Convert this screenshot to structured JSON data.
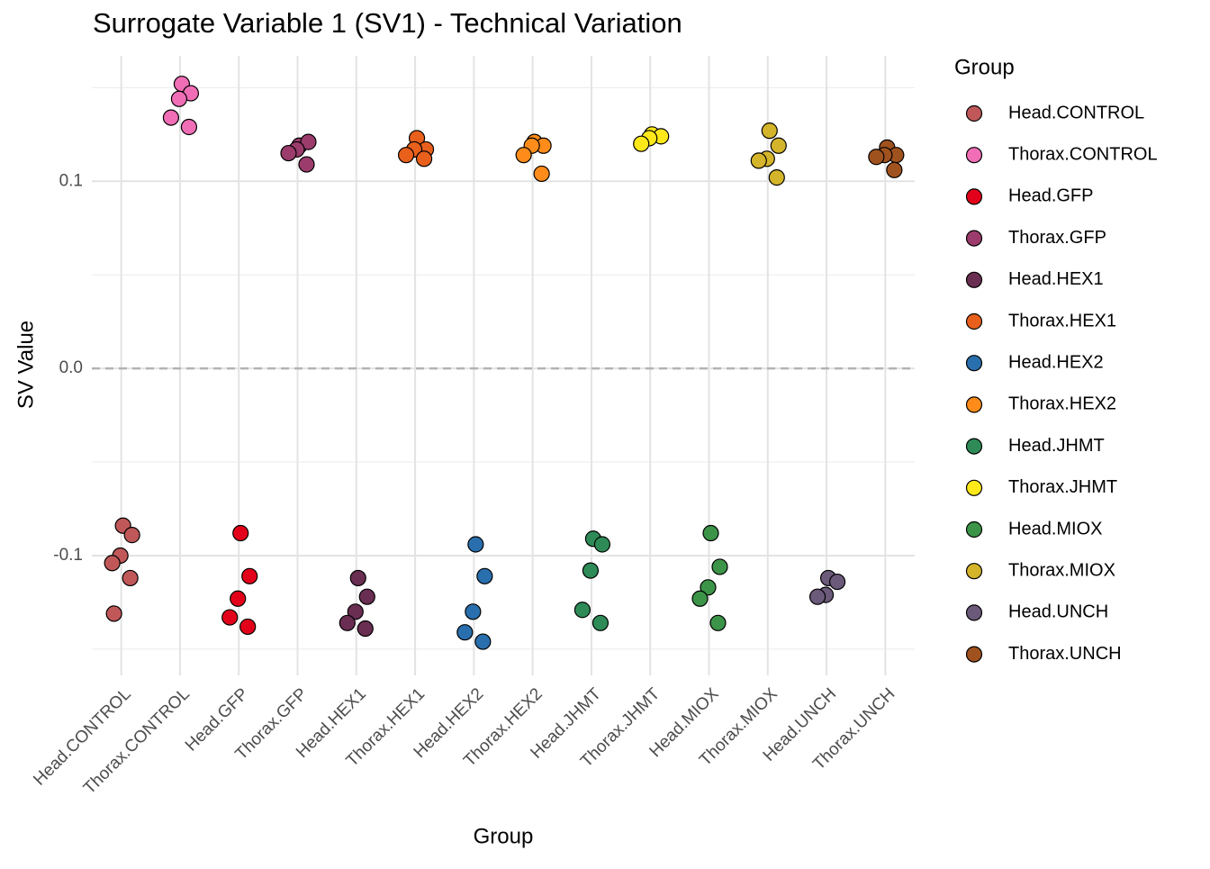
{
  "chart_data": {
    "type": "strip",
    "title": "Surrogate Variable 1 (SV1) - Technical Variation",
    "x_label": "Group",
    "y_label": "SV Value",
    "legend_title": "Group",
    "categories": [
      "Head.CONTROL",
      "Thorax.CONTROL",
      "Head.GFP",
      "Thorax.GFP",
      "Head.HEX1",
      "Thorax.HEX1",
      "Head.HEX2",
      "Thorax.HEX2",
      "Head.JHMT",
      "Thorax.JHMT",
      "Head.MIOX",
      "Thorax.MIOX",
      "Head.UNCH",
      "Thorax.UNCH"
    ],
    "series": [
      {
        "name": "Head.CONTROL",
        "color": "#c0585a",
        "values": [
          -0.084,
          -0.089,
          -0.1,
          -0.104,
          -0.112,
          -0.131
        ]
      },
      {
        "name": "Thorax.CONTROL",
        "color": "#f06eb6",
        "values": [
          0.152,
          0.147,
          0.144,
          0.134,
          0.129
        ]
      },
      {
        "name": "Head.GFP",
        "color": "#e3001a",
        "values": [
          -0.088,
          -0.111,
          -0.123,
          -0.133,
          -0.138
        ]
      },
      {
        "name": "Thorax.GFP",
        "color": "#9b3c6c",
        "values": [
          0.119,
          0.121,
          0.117,
          0.115,
          0.109
        ]
      },
      {
        "name": "Head.HEX1",
        "color": "#6a2e52",
        "values": [
          -0.112,
          -0.122,
          -0.13,
          -0.136,
          -0.139
        ]
      },
      {
        "name": "Thorax.HEX1",
        "color": "#e8601c",
        "values": [
          0.123,
          0.117,
          0.117,
          0.114,
          0.112
        ]
      },
      {
        "name": "Head.HEX2",
        "color": "#2a6fad",
        "values": [
          -0.094,
          -0.111,
          -0.13,
          -0.141,
          -0.146
        ]
      },
      {
        "name": "Thorax.HEX2",
        "color": "#ff8c1a",
        "values": [
          0.121,
          0.119,
          0.119,
          0.114,
          0.104
        ]
      },
      {
        "name": "Head.JHMT",
        "color": "#2e8b57",
        "values": [
          -0.091,
          -0.094,
          -0.108,
          -0.129,
          -0.136
        ]
      },
      {
        "name": "Thorax.JHMT",
        "color": "#ffe81a",
        "values": [
          0.125,
          0.124,
          0.123,
          0.12
        ]
      },
      {
        "name": "Head.MIOX",
        "color": "#3c9448",
        "values": [
          -0.088,
          -0.106,
          -0.117,
          -0.123,
          -0.136
        ]
      },
      {
        "name": "Thorax.MIOX",
        "color": "#d4b42a",
        "values": [
          0.127,
          0.119,
          0.112,
          0.111,
          0.102
        ]
      },
      {
        "name": "Head.UNCH",
        "color": "#6b5a7a",
        "values": [
          -0.112,
          -0.114,
          -0.121,
          -0.122
        ]
      },
      {
        "name": "Thorax.UNCH",
        "color": "#a0521e",
        "values": [
          0.118,
          0.114,
          0.114,
          0.113,
          0.106
        ]
      }
    ],
    "ylim": [
      -0.164,
      0.167
    ],
    "yticks": [
      {
        "value": -0.1,
        "label": "-0.1"
      },
      {
        "value": 0,
        "label": "0.0"
      },
      {
        "value": 0.1,
        "label": "0.1"
      }
    ],
    "reference_line": 0,
    "grid": true,
    "legend": "right"
  }
}
